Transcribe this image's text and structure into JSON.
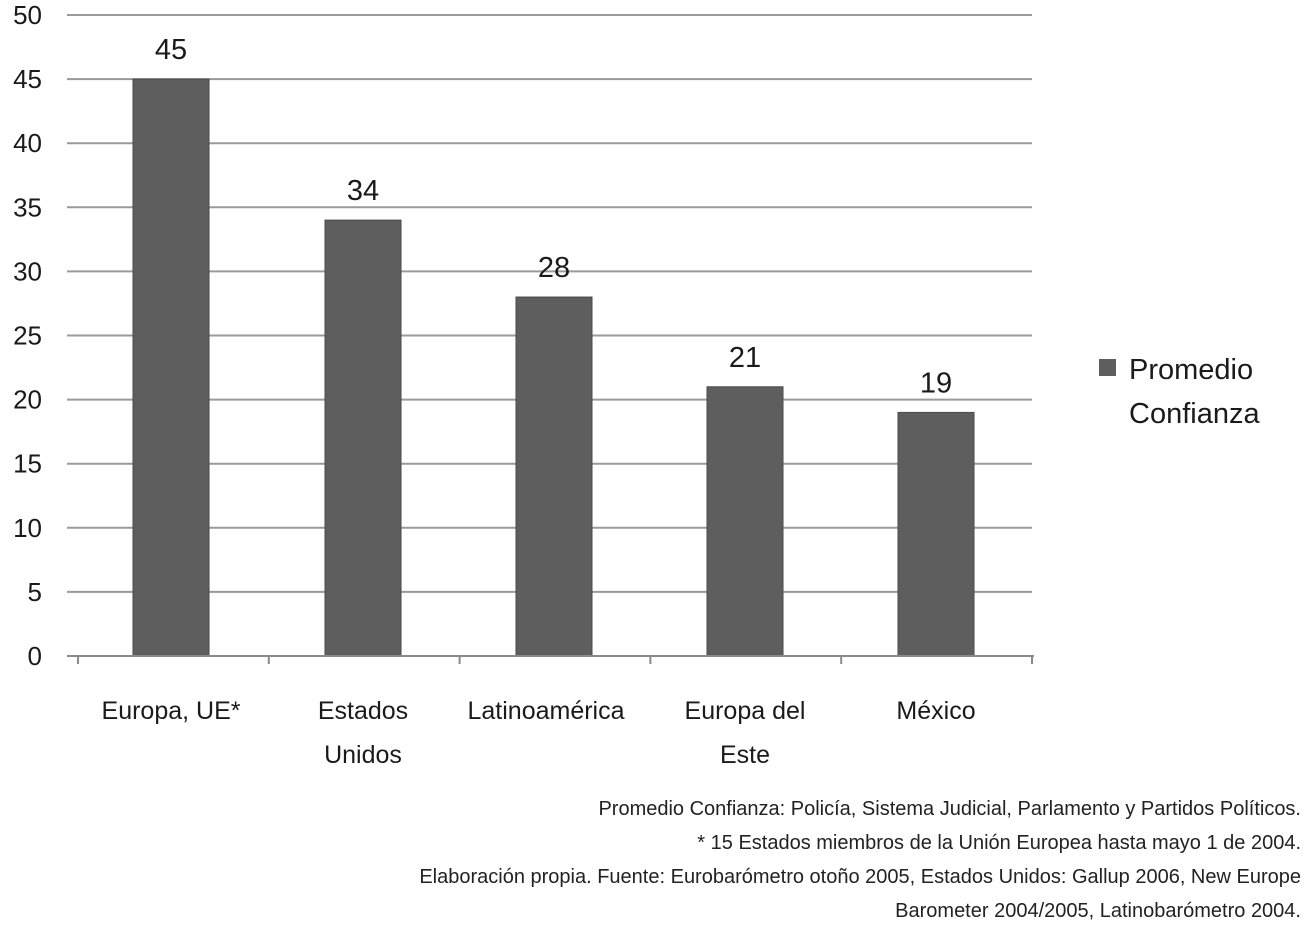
{
  "chart_data": {
    "type": "bar",
    "categories": [
      [
        "Europa, UE*"
      ],
      [
        "Estados",
        "Unidos"
      ],
      [
        "Latinoamérica"
      ],
      [
        "Europa del",
        "Este"
      ],
      [
        "México"
      ]
    ],
    "series": [
      {
        "name": [
          "Promedio",
          "Confianza"
        ],
        "values": [
          45,
          34,
          28,
          21,
          19
        ]
      }
    ],
    "data_labels": [
      "45",
      "34",
      "28",
      "21",
      "19"
    ],
    "yticks": [
      "0",
      "5",
      "10",
      "15",
      "20",
      "25",
      "30",
      "35",
      "40",
      "45",
      "50"
    ],
    "ylim": [
      0,
      50
    ],
    "grid": true,
    "legend_position": "right",
    "bar_color": "#5e5e5e",
    "grid_color": "#9a9a9a"
  },
  "notes": [
    "Promedio Confianza:  Policía, Sistema  Judicial,  Parlamento y Partidos Políticos.",
    "* 15 Estados  miembros de la Unión Europea hasta mayo  1 de 2004.",
    "Elaboración  propia. Fuente: Eurobarómetro otoño 2005, Estados  Unidos:  Gallup 2006, New Europe",
    "Barometer 2004/2005, Latinobarómetro 2004."
  ]
}
